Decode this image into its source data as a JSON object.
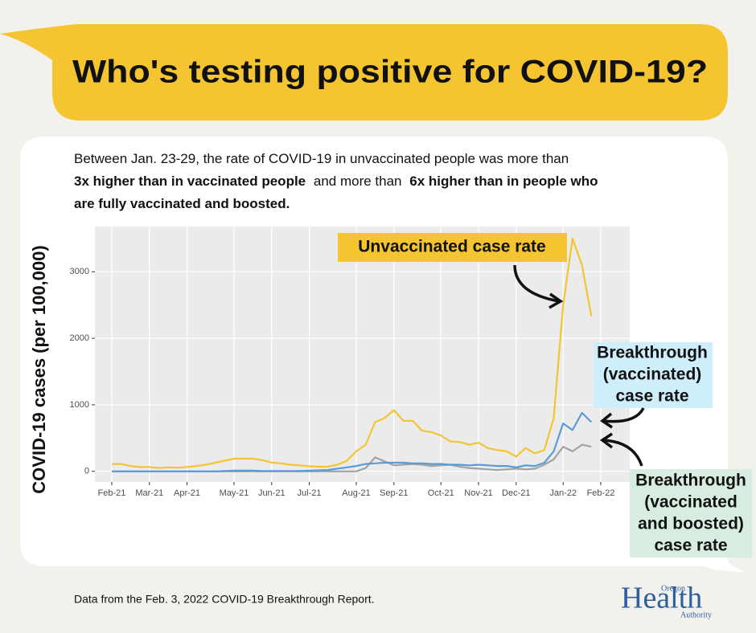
{
  "chart_data": {
    "type": "line",
    "title": "Who's testing positive for COVID-19?",
    "subtitle": [
      "Between Jan. 23-29, the rate of COVID-19 in unvaccinated people was more than",
      "3x higher than in vaccinated people",
      "and more than",
      "6x higher than in people who",
      "are fully vaccinated and boosted."
    ],
    "y_label": "COVID-19 cases (per 100,000)",
    "footer": "Data from the Feb. 3, 2022 COVID-19 Breakthrough Report.",
    "logo": [
      "Oregon",
      "Health",
      "Authority"
    ],
    "categories": [
      "Feb-21",
      null,
      null,
      null,
      "Mar-21",
      null,
      null,
      null,
      "Apr-21",
      null,
      null,
      null,
      null,
      "May-21",
      null,
      null,
      null,
      "Jun-21",
      null,
      null,
      null,
      "Jul-21",
      null,
      null,
      null,
      null,
      "Aug-21",
      null,
      null,
      null,
      "Sep-21",
      null,
      null,
      null,
      null,
      "Oct-21",
      null,
      null,
      null,
      "Nov-21",
      null,
      null,
      null,
      "Dec-21",
      null,
      null,
      null,
      null,
      "Jan-22",
      null,
      null,
      null,
      "Feb-22"
    ],
    "series": [
      {
        "label": [
          "Unvaccinated case rate"
        ],
        "color": "#f5c431",
        "values": [
          110,
          110,
          80,
          65,
          65,
          50,
          60,
          55,
          65,
          80,
          100,
          130,
          160,
          190,
          190,
          190,
          170,
          130,
          120,
          100,
          90,
          75,
          70,
          70,
          100,
          160,
          300,
          400,
          740,
          800,
          920,
          760,
          760,
          610,
          590,
          540,
          450,
          440,
          400,
          430,
          350,
          320,
          300,
          220,
          350,
          270,
          320,
          800,
          2500,
          3500,
          3100,
          2330,
          null
        ]
      },
      {
        "label": [
          "Breakthrough",
          "(vaccinated)",
          "case rate"
        ],
        "color": "#5b9bd5",
        "values": [
          0,
          0,
          0,
          0,
          0,
          0,
          0,
          0,
          0,
          0,
          0,
          0,
          5,
          10,
          10,
          10,
          5,
          5,
          5,
          5,
          5,
          10,
          15,
          20,
          40,
          60,
          80,
          110,
          120,
          130,
          130,
          130,
          120,
          120,
          110,
          110,
          100,
          100,
          90,
          100,
          90,
          80,
          80,
          60,
          90,
          80,
          130,
          300,
          720,
          620,
          880,
          740,
          null
        ]
      },
      {
        "label": [
          "Breakthrough",
          "(vaccinated",
          "and boosted)",
          "case rate"
        ],
        "color": "#a3a3a3",
        "values": [
          0,
          0,
          0,
          0,
          0,
          0,
          0,
          0,
          0,
          0,
          0,
          0,
          0,
          0,
          0,
          0,
          0,
          0,
          0,
          0,
          0,
          0,
          0,
          0,
          0,
          0,
          0,
          50,
          210,
          150,
          90,
          100,
          110,
          100,
          80,
          90,
          100,
          70,
          50,
          40,
          30,
          20,
          30,
          40,
          30,
          40,
          100,
          180,
          370,
          300,
          400,
          370,
          null
        ]
      }
    ],
    "ylim": [
      -160,
      3680
    ],
    "yticks": [
      0,
      1000,
      2000,
      3000
    ],
    "grid": true
  }
}
